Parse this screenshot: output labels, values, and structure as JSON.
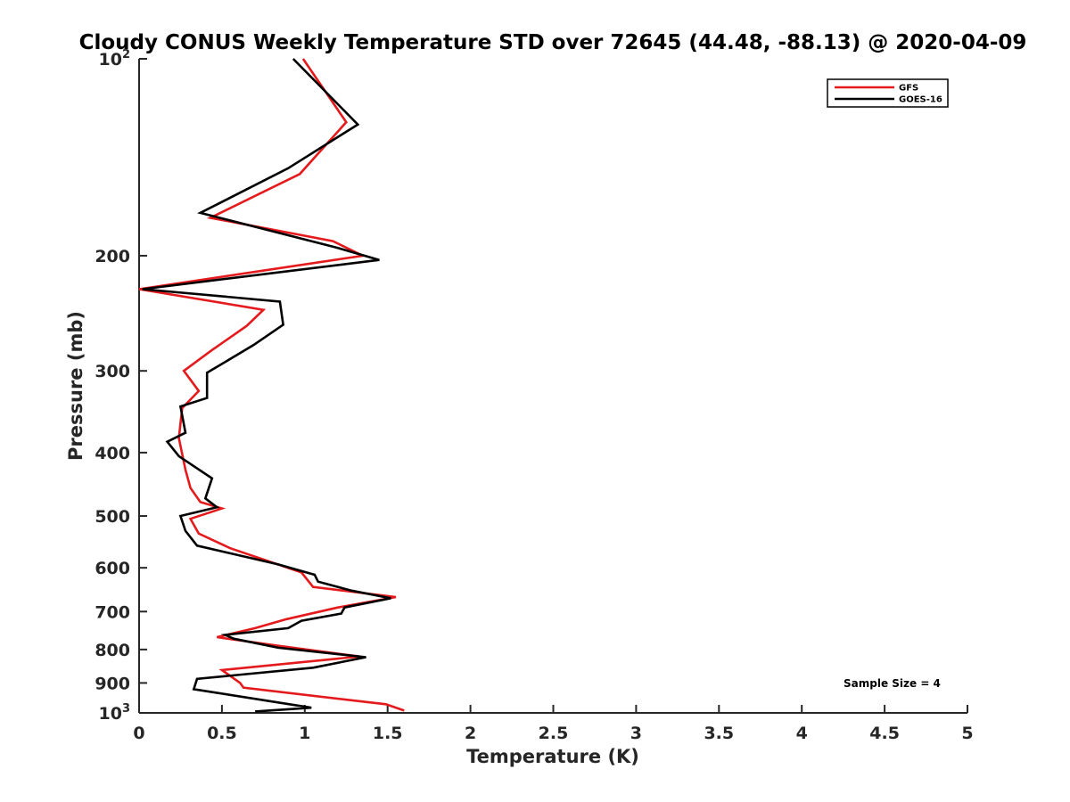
{
  "chart_data": {
    "type": "line",
    "title": "Cloudy CONUS Weekly Temperature STD over 72645 (44.48, -88.13) @ 2020-04-09",
    "xlabel": "Temperature (K)",
    "ylabel": "Pressure (mb)",
    "xlim": [
      0,
      5
    ],
    "ylim": [
      100,
      1000
    ],
    "y_scale": "log",
    "y_reversed": true,
    "grid": false,
    "legend_position": "top-right",
    "x_ticks": [
      "0",
      "0.5",
      "1",
      "1.5",
      "2",
      "2.5",
      "3",
      "3.5",
      "4",
      "4.5",
      "5"
    ],
    "y_ticks": [
      {
        "value": 100,
        "base": "10",
        "exp": "2"
      },
      {
        "value": 200,
        "label": "200"
      },
      {
        "value": 300,
        "label": "300"
      },
      {
        "value": 400,
        "label": "400"
      },
      {
        "value": 500,
        "label": "500"
      },
      {
        "value": 600,
        "label": "600"
      },
      {
        "value": 700,
        "label": "700"
      },
      {
        "value": 800,
        "label": "800"
      },
      {
        "value": 900,
        "label": "900"
      },
      {
        "value": 1000,
        "base": "10",
        "exp": "3"
      }
    ],
    "series": [
      {
        "name": "GFS",
        "color": "#e41a1c",
        "points": [
          [
            0.99,
            100
          ],
          [
            1.25,
            125
          ],
          [
            0.97,
            150
          ],
          [
            0.43,
            175
          ],
          [
            1.17,
            190
          ],
          [
            1.35,
            200
          ],
          [
            0.0,
            225
          ],
          [
            0.75,
            242
          ],
          [
            0.65,
            256
          ],
          [
            0.43,
            280
          ],
          [
            0.27,
            300
          ],
          [
            0.36,
            322
          ],
          [
            0.26,
            342
          ],
          [
            0.24,
            380
          ],
          [
            0.28,
            425
          ],
          [
            0.31,
            453
          ],
          [
            0.37,
            476
          ],
          [
            0.5,
            487
          ],
          [
            0.31,
            505
          ],
          [
            0.36,
            532
          ],
          [
            0.55,
            560
          ],
          [
            0.98,
            610
          ],
          [
            1.05,
            642
          ],
          [
            1.55,
            665
          ],
          [
            1.2,
            690
          ],
          [
            0.89,
            719
          ],
          [
            0.7,
            742
          ],
          [
            0.47,
            766
          ],
          [
            0.85,
            790
          ],
          [
            1.33,
            820
          ],
          [
            0.5,
            860
          ],
          [
            0.61,
            900
          ],
          [
            0.63,
            915
          ],
          [
            1.49,
            970
          ],
          [
            1.6,
            992
          ]
        ]
      },
      {
        "name": "GOES-16",
        "color": "#000000",
        "points": [
          [
            0.93,
            100
          ],
          [
            1.32,
            126
          ],
          [
            0.9,
            147
          ],
          [
            0.37,
            172
          ],
          [
            1.18,
            194
          ],
          [
            1.45,
            203
          ],
          [
            0.02,
            225
          ],
          [
            0.85,
            235
          ],
          [
            0.87,
            255
          ],
          [
            0.69,
            274
          ],
          [
            0.41,
            302
          ],
          [
            0.41,
            330
          ],
          [
            0.25,
            340
          ],
          [
            0.28,
            373
          ],
          [
            0.17,
            385
          ],
          [
            0.24,
            405
          ],
          [
            0.44,
            438
          ],
          [
            0.4,
            470
          ],
          [
            0.47,
            485
          ],
          [
            0.25,
            500
          ],
          [
            0.28,
            527
          ],
          [
            0.35,
            555
          ],
          [
            0.84,
            593
          ],
          [
            1.06,
            615
          ],
          [
            1.08,
            630
          ],
          [
            1.28,
            650
          ],
          [
            1.52,
            668
          ],
          [
            1.24,
            690
          ],
          [
            1.22,
            705
          ],
          [
            0.98,
            723
          ],
          [
            0.9,
            742
          ],
          [
            0.52,
            760
          ],
          [
            0.57,
            770
          ],
          [
            0.84,
            795
          ],
          [
            1.37,
            822
          ],
          [
            1.05,
            853
          ],
          [
            0.35,
            887
          ],
          [
            0.33,
            920
          ],
          [
            1.04,
            982
          ],
          [
            0.7,
            995
          ]
        ]
      }
    ],
    "annotation": "Sample Size = 4"
  }
}
